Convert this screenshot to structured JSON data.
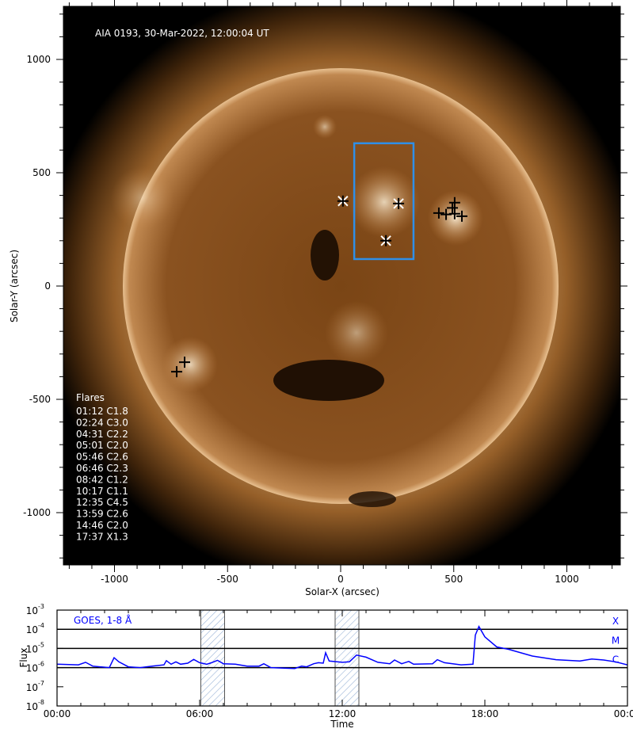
{
  "chart_data": [
    {
      "type": "image",
      "title": "AIA 0193, 30-Mar-2022, 12:00:04 UT",
      "xlabel": "Solar-X (arcsec)",
      "ylabel": "Solar-Y (arcsec)",
      "xlim": [
        -1230,
        1235
      ],
      "ylim": [
        -1230,
        1235
      ],
      "xticks": [
        -1000,
        -500,
        0,
        500,
        1000
      ],
      "yticks": [
        -1000,
        -500,
        0,
        500,
        1000
      ],
      "colormap": "sdoaia193",
      "box": {
        "x": [
          60,
          322
        ],
        "y": [
          119,
          630
        ],
        "color": "#2f8fe8"
      },
      "flare_markers_in_box": [
        [
          10,
          375
        ],
        [
          256,
          364
        ],
        [
          200,
          200
        ]
      ],
      "flare_markers_other": [
        [
          434,
          322
        ],
        [
          466,
          316
        ],
        [
          504,
          319
        ],
        [
          536,
          308
        ],
        [
          504,
          368
        ],
        [
          494,
          345
        ],
        [
          -725,
          -378
        ],
        [
          -690,
          -336
        ]
      ],
      "legend_title": "Flares",
      "flares": [
        "01:12 C1.8",
        "02:24 C3.0",
        "04:31 C2.2",
        "05:01 C2.0",
        "05:46 C2.6",
        "06:46 C2.3",
        "08:42 C1.2",
        "10:17 C1.1",
        "12:35 C4.5",
        "13:59 C2.6",
        "14:46 C2.0",
        "17:37 X1.3"
      ]
    },
    {
      "type": "line",
      "series_label": "GOES, 1-8 Å",
      "color": "#0000ff",
      "xlabel": "Time",
      "ylabel": "Flux",
      "yscale": "log",
      "ylim": [
        1e-08,
        0.001
      ],
      "xlim_hours": [
        0,
        24
      ],
      "xtick_labels": [
        "00:00",
        "06:00",
        "12:00",
        "18:00",
        "00:00"
      ],
      "ytick_labels": [
        "10-8",
        "10-7",
        "10-6",
        "10-5",
        "10-4",
        "10-3"
      ],
      "class_levels": [
        {
          "label": "X",
          "flux": 0.0001
        },
        {
          "label": "M",
          "flux": 1e-05
        },
        {
          "label": "C",
          "flux": 1e-06
        }
      ],
      "shaded_intervals_hours": [
        [
          6.05,
          7.05
        ],
        [
          11.7,
          12.7
        ]
      ],
      "x_hours": [
        0,
        0.9,
        1.2,
        1.5,
        1.8,
        2.2,
        2.4,
        2.6,
        3.0,
        3.5,
        4.0,
        4.5,
        4.6,
        4.8,
        5.0,
        5.2,
        5.5,
        5.75,
        6.0,
        6.3,
        6.5,
        6.75,
        7.0,
        7.5,
        8.0,
        8.5,
        8.7,
        9.0,
        10.0,
        10.3,
        10.5,
        10.8,
        11.0,
        11.2,
        11.3,
        11.45,
        12.0,
        12.3,
        12.6,
        13.0,
        13.5,
        14.0,
        14.2,
        14.5,
        14.8,
        15.0,
        15.8,
        16.0,
        16.3,
        17.0,
        17.5,
        17.6,
        17.75,
        18.0,
        18.5,
        19.0,
        20.0,
        21.0,
        22.0,
        22.5,
        23.0,
        23.5,
        24.0
      ],
      "flux": [
        1.5e-06,
        1.4e-06,
        1.9e-06,
        1.2e-06,
        1.1e-06,
        1e-06,
        3.3e-06,
        2e-06,
        1.1e-06,
        1e-06,
        1.2e-06,
        1.4e-06,
        2.3e-06,
        1.5e-06,
        2e-06,
        1.5e-06,
        1.7e-06,
        2.7e-06,
        1.8e-06,
        1.5e-06,
        1.8e-06,
        2.4e-06,
        1.6e-06,
        1.5e-06,
        1.2e-06,
        1.2e-06,
        1.6e-06,
        1e-06,
        9e-07,
        1.2e-06,
        1.1e-06,
        1.6e-06,
        1.8e-06,
        1.7e-06,
        6e-06,
        2.2e-06,
        1.9e-06,
        2e-06,
        4.5e-06,
        3.5e-06,
        1.9e-06,
        1.6e-06,
        2.5e-06,
        1.6e-06,
        2.1e-06,
        1.5e-06,
        1.6e-06,
        2.6e-06,
        1.8e-06,
        1.4e-06,
        1.5e-06,
        5e-05,
        0.00014,
        4e-05,
        1.2e-05,
        9e-06,
        4e-06,
        2.6e-06,
        2.2e-06,
        2.8e-06,
        2.5e-06,
        2e-06,
        1.4e-06
      ]
    }
  ]
}
